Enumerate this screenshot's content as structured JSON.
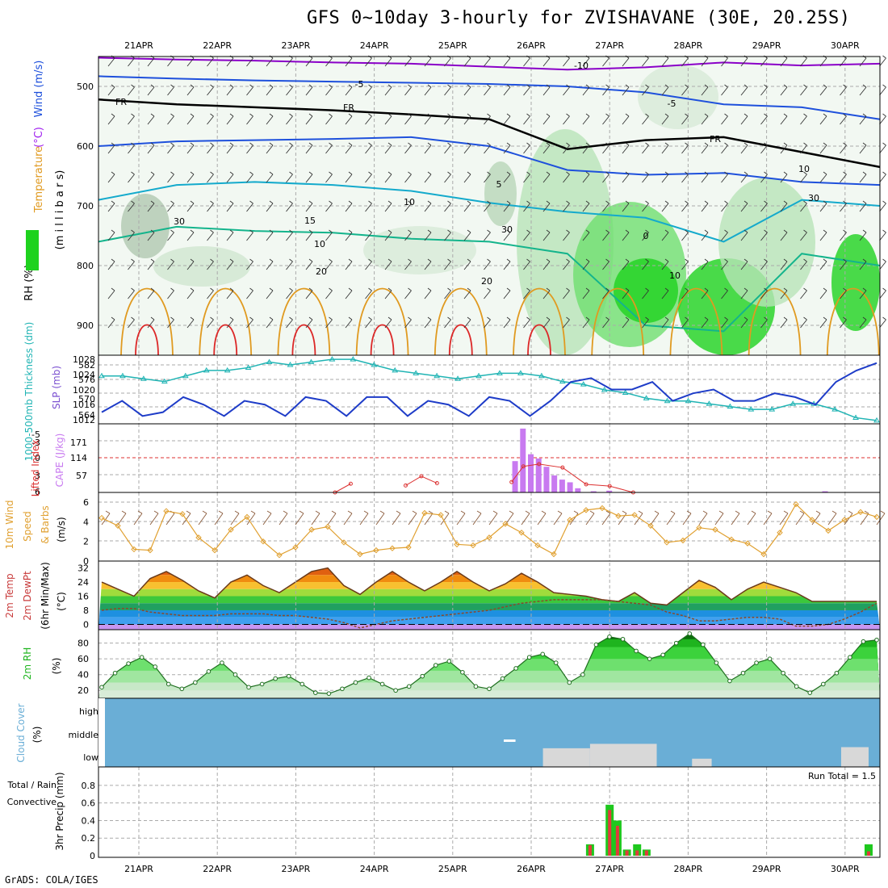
{
  "header": {
    "title": "GFS 0~10day 3-hourly for ZVISHAVANE (30E, 20.25S)",
    "credit": "GrADS: COLA/IGES"
  },
  "colors": {
    "temp_purple": "#8a00c8",
    "temp_blue": "#1e50dc",
    "temp_cyan": "#14aacc",
    "temp_teal": "#14b48c",
    "temp_orange": "#e09a20",
    "temp_red": "#dc2828",
    "rh_green": "#1ed21e",
    "thickness": "#20b4b4",
    "slp": "#1e3cc8",
    "cape": "#c87af0",
    "li": "#dc3232",
    "wind10": "#e0a030",
    "cloud": "#6aaed6",
    "cloud_low": "#d8d8d8",
    "precip_total": "#1ec81e",
    "precip_conv": "#e03c3c"
  },
  "chart_data": [
    {
      "type": "contour",
      "name": "upper-air cross-section",
      "title": "GFS 0~10day 3-hourly for ZVISHAVANE (30E, 20.25S)",
      "x_dates": [
        "21APR",
        "22APR",
        "23APR",
        "24APR",
        "25APR",
        "26APR",
        "27APR",
        "28APR",
        "29APR",
        "30APR"
      ],
      "y_ticks": [
        500,
        600,
        700,
        800,
        900
      ],
      "ylim": [
        950,
        450
      ],
      "ylabel_parts": [
        "RH (%)",
        "Temperature",
        "(°C)",
        "Wind (m/s)",
        "(m i l l i b a r s)"
      ],
      "contour_labels": [
        "-10",
        "-5",
        "-5",
        "FR",
        "FR",
        "FR",
        "5",
        "10",
        "15",
        "0",
        "20",
        "20",
        "10",
        "30",
        "30",
        "10",
        "30",
        "10"
      ],
      "temp_levels": [
        {
          "label": "-10",
          "color": "purple",
          "p": [
            452,
            455,
            457,
            460,
            462,
            467,
            472,
            468,
            460,
            465,
            462
          ]
        },
        {
          "label": "-5",
          "color": "blue",
          "p": [
            483,
            487,
            490,
            492,
            494,
            496,
            500,
            510,
            530,
            535,
            555
          ]
        },
        {
          "label": "FR",
          "color": "black",
          "p": [
            522,
            530,
            535,
            540,
            547,
            555,
            605,
            590,
            585,
            610,
            635
          ]
        },
        {
          "label": "5",
          "color": "blue",
          "p": [
            600,
            592,
            590,
            588,
            585,
            600,
            640,
            648,
            645,
            660,
            665
          ]
        },
        {
          "label": "10",
          "color": "cyan",
          "p": [
            690,
            665,
            660,
            665,
            675,
            695,
            710,
            720,
            760,
            690,
            700
          ]
        },
        {
          "label": "15",
          "color": "teal",
          "p": [
            760,
            735,
            742,
            745,
            755,
            760,
            780,
            900,
            910,
            780,
            800
          ]
        }
      ]
    },
    {
      "type": "line",
      "name": "thickness-slp",
      "ylabel_left": "1000-500mb Thickness (dm)",
      "ylabel_right": "SLP (mb)",
      "left_ticks": [
        "582",
        "576",
        "570",
        "564"
      ],
      "right_ticks": [
        "1028",
        "1024",
        "1020",
        "1016",
        "1012"
      ],
      "series": [
        {
          "name": "1000-500mb Thickness (dm)",
          "values": [
            578,
            578,
            577,
            576,
            578,
            580,
            580,
            581,
            583,
            582,
            583,
            584,
            584,
            582,
            580,
            579,
            578,
            577,
            578,
            579,
            579,
            578,
            576,
            575,
            573,
            572,
            570,
            569,
            569,
            568,
            567,
            566,
            566,
            568,
            568,
            566,
            563,
            562
          ]
        },
        {
          "name": "SLP (mb)",
          "values": [
            1014,
            1017,
            1013,
            1014,
            1018,
            1016,
            1013,
            1017,
            1016,
            1013,
            1018,
            1017,
            1013,
            1018,
            1018,
            1013,
            1017,
            1016,
            1013,
            1018,
            1017,
            1013,
            1017,
            1022,
            1023,
            1020,
            1020,
            1022,
            1017,
            1019,
            1020,
            1017,
            1017,
            1019,
            1018,
            1016,
            1022,
            1025,
            1027
          ]
        }
      ]
    },
    {
      "type": "bar",
      "name": "cape-lifted-index",
      "ylabel_left": "Lifted Index",
      "ylabel_right": "CAPE (J/kg)",
      "li_ticks": [
        "-3",
        "-5",
        "0",
        "3",
        "6"
      ],
      "cape_ticks": [
        "171",
        "114",
        "57"
      ],
      "cape_bars": [
        {
          "day": 5.8,
          "v": 105
        },
        {
          "day": 5.9,
          "v": 214
        },
        {
          "day": 6.0,
          "v": 128
        },
        {
          "day": 6.1,
          "v": 114
        },
        {
          "day": 6.2,
          "v": 86
        },
        {
          "day": 6.3,
          "v": 57
        },
        {
          "day": 6.4,
          "v": 43
        },
        {
          "day": 6.5,
          "v": 34
        },
        {
          "day": 6.6,
          "v": 14
        },
        {
          "day": 6.8,
          "v": 4
        },
        {
          "day": 7.0,
          "v": 6
        },
        {
          "day": 9.75,
          "v": 4
        }
      ],
      "li_values": [
        {
          "day": 3.5,
          "v": 6
        },
        {
          "day": 3.7,
          "v": 4.5
        },
        {
          "day": 4.4,
          "v": 4.8
        },
        {
          "day": 4.6,
          "v": 3.2
        },
        {
          "day": 4.8,
          "v": 4.4
        },
        {
          "day": 5.75,
          "v": 4.2
        },
        {
          "day": 5.9,
          "v": 1.5
        },
        {
          "day": 6.1,
          "v": 1.1
        },
        {
          "day": 6.4,
          "v": 1.7
        },
        {
          "day": 6.7,
          "v": 4.6
        },
        {
          "day": 7.0,
          "v": 4.9
        },
        {
          "day": 7.3,
          "v": 6
        }
      ]
    },
    {
      "type": "line",
      "name": "10m-wind",
      "ylabel": "10m Wind Speed & Barbs (m/s)",
      "y_ticks": [
        "6",
        "4",
        "2",
        "0"
      ],
      "ylim": [
        0,
        7
      ],
      "values": [
        4.4,
        3.6,
        1.2,
        1.1,
        5.1,
        4.8,
        2.4,
        1.1,
        3.2,
        4.5,
        2.0,
        0.6,
        1.4,
        3.2,
        3.5,
        1.9,
        0.7,
        1.1,
        1.3,
        1.4,
        4.9,
        4.7,
        1.7,
        1.6,
        2.4,
        3.8,
        2.9,
        1.6,
        0.7,
        4.2,
        5.2,
        5.4,
        4.6,
        4.7,
        3.6,
        1.9,
        2.1,
        3.4,
        3.2,
        2.2,
        1.8,
        0.7,
        2.9,
        5.8,
        4.2,
        3.1,
        4.2,
        5.0,
        4.5
      ]
    },
    {
      "type": "area",
      "name": "2m-temp",
      "ylabel": "2m Temp 2m DewPt (6hr Min/Max) (°C)",
      "y_ticks": [
        "32",
        "24",
        "16",
        "8",
        "0"
      ],
      "ylim": [
        -3,
        35
      ],
      "temp": [
        24,
        20,
        16,
        26,
        30,
        25,
        19,
        15,
        24,
        28,
        22,
        18,
        24,
        30,
        32,
        22,
        17,
        24,
        30,
        24,
        19,
        24,
        30,
        24,
        19,
        23,
        29,
        24,
        18,
        17,
        16,
        14,
        13,
        18,
        12,
        11,
        18,
        25,
        21,
        14,
        20,
        24,
        21,
        18,
        13,
        13,
        13,
        13,
        13
      ],
      "dewpoint": [
        8,
        9,
        9,
        7,
        6,
        5,
        5,
        5,
        6,
        6,
        6,
        5,
        5,
        4,
        3,
        1,
        -2,
        0,
        2,
        3,
        4,
        5,
        6,
        7,
        8,
        10,
        12,
        13,
        14,
        14,
        14,
        14,
        13,
        12,
        11,
        7,
        5,
        2,
        2,
        3,
        4,
        4,
        3,
        -1,
        -1,
        0,
        3,
        7,
        12
      ]
    },
    {
      "type": "area",
      "name": "2m-rh",
      "ylabel": "2m RH (%)",
      "y_ticks": [
        "80",
        "60",
        "40",
        "20"
      ],
      "ylim": [
        10,
        95
      ],
      "values": [
        24,
        42,
        54,
        62,
        50,
        28,
        22,
        30,
        44,
        55,
        40,
        24,
        28,
        35,
        38,
        28,
        17,
        16,
        22,
        30,
        36,
        28,
        20,
        25,
        38,
        52,
        57,
        43,
        25,
        22,
        35,
        48,
        62,
        66,
        55,
        30,
        40,
        78,
        88,
        85,
        70,
        60,
        65,
        80,
        92,
        78,
        55,
        32,
        42,
        55,
        60,
        42,
        25,
        17,
        28,
        42,
        62,
        82,
        84
      ]
    },
    {
      "type": "heatmap",
      "name": "cloud-cover",
      "ylabel": "Cloud Cover (%)",
      "levels": [
        "high",
        "middle",
        "low"
      ],
      "low_cloud_segments": [
        {
          "start": 6.15,
          "end": 6.75,
          "pct": 0.34
        },
        {
          "start": 6.75,
          "end": 7.6,
          "pct": 0.42
        },
        {
          "start": 8.05,
          "end": 8.3,
          "pct": 0.15
        },
        {
          "start": 9.95,
          "end": 10.3,
          "pct": 0.36
        }
      ],
      "mid_cloud_segments": [
        {
          "start": 5.65,
          "end": 5.8,
          "pct": 0.15
        }
      ]
    },
    {
      "type": "bar",
      "name": "precip",
      "ylabel": "3hr Precip (mm)",
      "legend_total": "Total / Rain",
      "legend_conv": "Convective",
      "run_total": "Run Total = 1.5",
      "y_ticks": [
        "0.8",
        "0.6",
        "0.4",
        "0.2",
        "0"
      ],
      "ylim": [
        0,
        0.9
      ],
      "bars": [
        {
          "day": 6.75,
          "total": 0.13,
          "conv": 0.12
        },
        {
          "day": 7.0,
          "total": 0.58,
          "conv": 0.52
        },
        {
          "day": 7.1,
          "total": 0.4,
          "conv": 0.34
        },
        {
          "day": 7.22,
          "total": 0.07,
          "conv": 0.06
        },
        {
          "day": 7.35,
          "total": 0.13,
          "conv": 0.06
        },
        {
          "day": 7.47,
          "total": 0.07,
          "conv": 0.06
        },
        {
          "day": 10.3,
          "total": 0.13,
          "conv": 0.05
        }
      ]
    }
  ]
}
